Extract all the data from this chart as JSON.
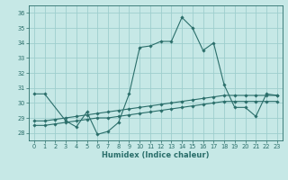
{
  "xlabel": "Humidex (Indice chaleur)",
  "xlim": [
    -0.5,
    23.5
  ],
  "ylim": [
    27.5,
    36.5
  ],
  "yticks": [
    28,
    29,
    30,
    31,
    32,
    33,
    34,
    35,
    36
  ],
  "xticks": [
    0,
    1,
    2,
    3,
    4,
    5,
    6,
    7,
    8,
    9,
    10,
    11,
    12,
    13,
    14,
    15,
    16,
    17,
    18,
    19,
    20,
    21,
    22,
    23
  ],
  "bg_color": "#c6e8e6",
  "grid_color": "#9ecece",
  "line_color": "#2a6e6a",
  "line1_x": [
    0,
    1,
    3,
    4,
    5,
    6,
    7,
    8,
    9,
    10,
    11,
    12,
    13,
    14,
    15,
    16,
    17,
    18,
    19,
    20,
    21,
    22,
    23
  ],
  "line1_y": [
    30.6,
    30.6,
    28.8,
    28.4,
    29.4,
    27.9,
    28.1,
    28.7,
    30.6,
    33.7,
    33.8,
    34.1,
    34.1,
    35.7,
    35.0,
    33.5,
    34.0,
    31.2,
    29.7,
    29.7,
    29.1,
    30.6,
    30.5
  ],
  "line3_x": [
    0,
    1,
    2,
    3,
    4,
    5,
    6,
    7,
    8,
    9,
    10,
    11,
    12,
    13,
    14,
    15,
    16,
    17,
    18,
    19,
    20,
    21,
    22,
    23
  ],
  "line3_y": [
    28.8,
    28.8,
    28.9,
    29.0,
    29.1,
    29.2,
    29.3,
    29.4,
    29.5,
    29.6,
    29.7,
    29.8,
    29.9,
    30.0,
    30.1,
    30.2,
    30.3,
    30.4,
    30.5,
    30.5,
    30.5,
    30.5,
    30.5,
    30.5
  ],
  "line4_x": [
    0,
    1,
    2,
    3,
    4,
    5,
    6,
    7,
    8,
    9,
    10,
    11,
    12,
    13,
    14,
    15,
    16,
    17,
    18,
    19,
    20,
    21,
    22,
    23
  ],
  "line4_y": [
    28.5,
    28.5,
    28.6,
    28.7,
    28.8,
    28.9,
    29.0,
    29.0,
    29.1,
    29.2,
    29.3,
    29.4,
    29.5,
    29.6,
    29.7,
    29.8,
    29.9,
    30.0,
    30.1,
    30.1,
    30.1,
    30.1,
    30.1,
    30.1
  ]
}
